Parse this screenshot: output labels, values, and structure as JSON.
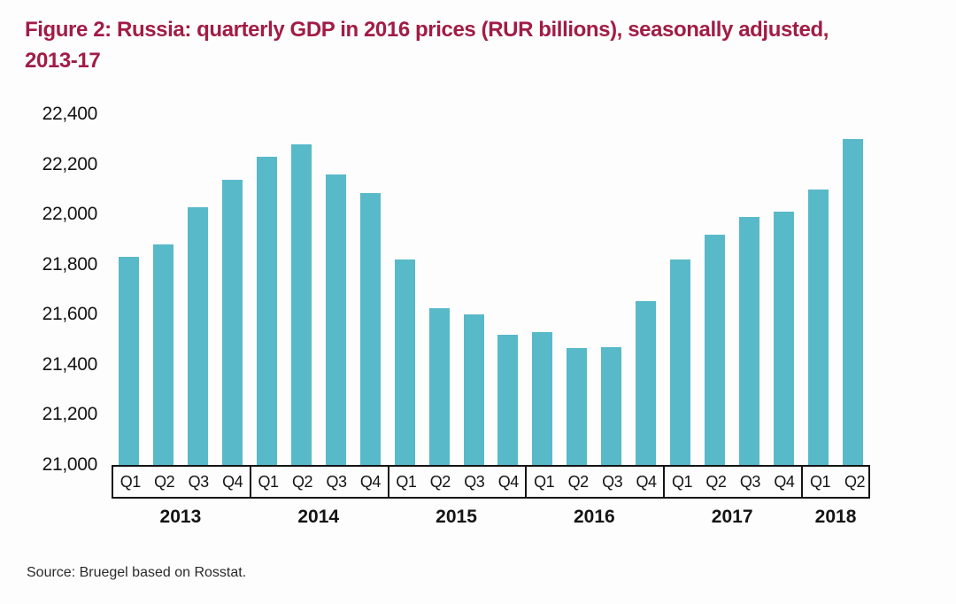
{
  "page": {
    "title_line1": "Figure 2: Russia: quarterly GDP in 2016 prices (RUR billions), seasonally adjusted,",
    "title_line2": "2013-17",
    "source": "Source: Bruegel based on Rosstat."
  },
  "colors": {
    "title": "#a11c46",
    "bar": "#58b9c9",
    "axis_text": "#141414",
    "box_border": "#141414",
    "background": "#fdfdfd"
  },
  "chart_data": {
    "type": "bar",
    "title": "Figure 2: Russia: quarterly GDP in 2016 prices (RUR billions), seasonally adjusted, 2013-17",
    "xlabel": "",
    "ylabel": "",
    "ylim": [
      21000,
      22400
    ],
    "grid": false,
    "legend": false,
    "yticks": [
      21000,
      21200,
      21400,
      21600,
      21800,
      22000,
      22200,
      22400
    ],
    "ytick_labels": [
      "21,000",
      "21,200",
      "21,400",
      "21,600",
      "21,800",
      "22,000",
      "22,200",
      "22,400"
    ],
    "categories": [
      "2013 Q1",
      "2013 Q2",
      "2013 Q3",
      "2013 Q4",
      "2014 Q1",
      "2014 Q2",
      "2014 Q3",
      "2014 Q4",
      "2015 Q1",
      "2015 Q2",
      "2015 Q3",
      "2015 Q4",
      "2016 Q1",
      "2016 Q2",
      "2016 Q3",
      "2016 Q4",
      "2017 Q1",
      "2017 Q2",
      "2017 Q3",
      "2017 Q4",
      "2018 Q1",
      "2018 Q2"
    ],
    "values": [
      21830,
      21880,
      22030,
      22140,
      22230,
      22280,
      22160,
      22085,
      21820,
      21625,
      21600,
      21520,
      21530,
      21465,
      21470,
      21655,
      21820,
      21920,
      21990,
      22010,
      22100,
      22300
    ],
    "groups": [
      {
        "year": "2013",
        "quarters": [
          "Q1",
          "Q2",
          "Q3",
          "Q4"
        ]
      },
      {
        "year": "2014",
        "quarters": [
          "Q1",
          "Q2",
          "Q3",
          "Q4"
        ]
      },
      {
        "year": "2015",
        "quarters": [
          "Q1",
          "Q2",
          "Q3",
          "Q4"
        ]
      },
      {
        "year": "2016",
        "quarters": [
          "Q1",
          "Q2",
          "Q3",
          "Q4"
        ]
      },
      {
        "year": "2017",
        "quarters": [
          "Q1",
          "Q2",
          "Q3",
          "Q4"
        ]
      },
      {
        "year": "2018",
        "quarters": [
          "Q1",
          "Q2"
        ]
      }
    ]
  }
}
